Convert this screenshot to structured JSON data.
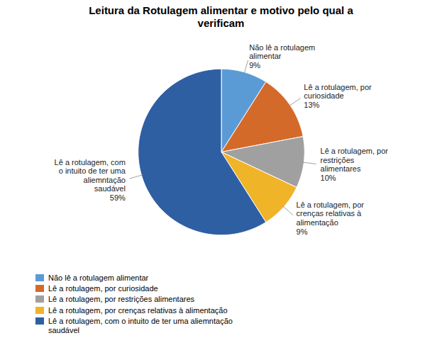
{
  "chart_data": {
    "type": "pie",
    "title": "Leitura da Rotulagem alimentar e motivo pelo qual a\nverificam",
    "categories": [
      "Não lê a rotulagem alimentar",
      "Lê a rotulagem, por curiosidade",
      "Lê a rotulagem, por restrições alimentares",
      "Lê a rotulagem, por crenças relativas à alimentação",
      "Lê a rotulagem, com o intuito de ter uma aliemntação\nsaudável"
    ],
    "values": [
      9,
      13,
      10,
      9,
      59
    ],
    "colors": [
      "#5b9bd5",
      "#d46a2a",
      "#a0a0a0",
      "#f0b429",
      "#2e5fa3"
    ],
    "annotations": [
      "Não lê a rotulagem\nalimentar\n9%",
      "Lê a rotulagem, por\ncuriosidade\n13%",
      "Lê a rotulagem, por\nrestrições\nalimentares\n10%",
      "Lê a rotulagem, por\ncrenças relativas à\nalimentação\n9%",
      "Lê a rotulagem, com\no intuito de ter uma\naliemntação\nsaudável\n59%"
    ],
    "legend": "bottom"
  }
}
